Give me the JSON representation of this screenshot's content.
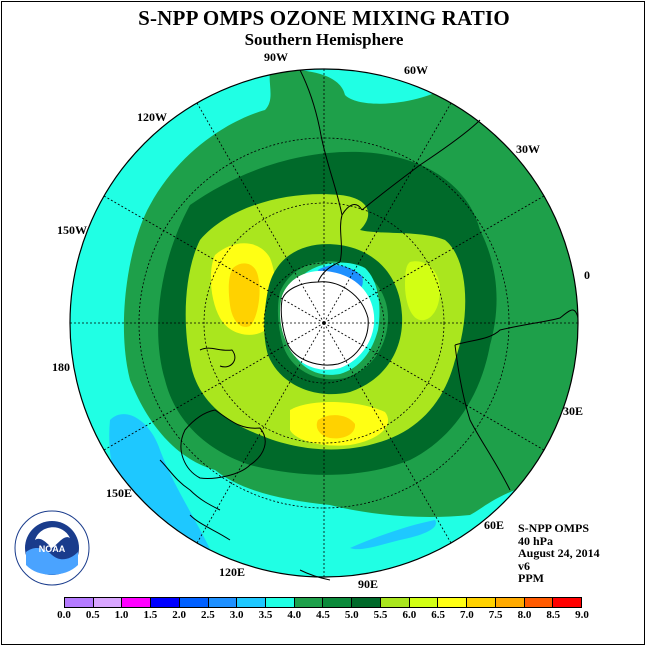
{
  "title": "S-NPP OMPS OZONE MIXING RATIO",
  "subtitle": "Southern Hemisphere",
  "longitude_labels": {
    "lon_90w": "90W",
    "lon_60w": "60W",
    "lon_30w": "30W",
    "lon_0": "0",
    "lon_30e": "30E",
    "lon_60e": "60E",
    "lon_90e": "90E",
    "lon_120e": "120E",
    "lon_150e": "150E",
    "lon_180": "180",
    "lon_150w": "150W",
    "lon_120w": "120W"
  },
  "info": {
    "instrument": "S-NPP OMPS",
    "level": "40 hPa",
    "date": "August 24, 2014",
    "version": "v6",
    "units": "PPM"
  },
  "logo": {
    "text": "NOAA",
    "ring_text": "NATIONAL OCEANIC AND ATMOSPHERIC ADMINISTRATION · U.S. DEPARTMENT OF COMMERCE"
  },
  "colorbar": {
    "ticks": [
      "0.0",
      "0.5",
      "1.0",
      "1.5",
      "2.0",
      "2.5",
      "3.0",
      "3.5",
      "4.0",
      "4.5",
      "5.0",
      "5.5",
      "6.0",
      "6.5",
      "7.0",
      "7.5",
      "8.0",
      "8.5",
      "9.0"
    ],
    "colors": [
      "#b57bff",
      "#d9a6ff",
      "#ff00ff",
      "#0000ff",
      "#0060ff",
      "#1e90ff",
      "#1ec8ff",
      "#20ffe4",
      "#1ea04a",
      "#0b8a3a",
      "#006a2a",
      "#aae61e",
      "#d2ff14",
      "#ffff14",
      "#ffd200",
      "#ffaa00",
      "#ff5a00",
      "#ff0000",
      "#8b5a2b"
    ]
  }
}
